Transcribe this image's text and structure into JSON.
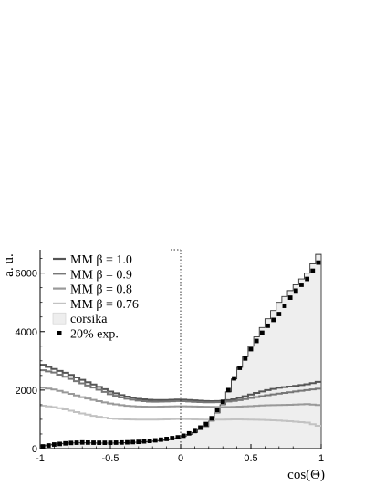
{
  "chart_data": {
    "type": "line",
    "title": "",
    "xlabel": "cos(Θ)",
    "ylabel": "a. u.",
    "xlim": [
      -1,
      1
    ],
    "ylim": [
      0,
      6800
    ],
    "x_ticks": [
      -1,
      -0.5,
      0,
      0.5,
      1
    ],
    "x_tick_labels": [
      "-1",
      "-0.5",
      "0",
      "0.5",
      "1"
    ],
    "y_ticks": [
      0,
      2000,
      4000,
      6000
    ],
    "y_tick_labels": [
      "0",
      "2000",
      "4000",
      "6000"
    ],
    "grid": false,
    "legend_position": "top-left",
    "reference_line": {
      "x": 0,
      "style": "dotted"
    },
    "x": [
      -1.0,
      -0.9,
      -0.8,
      -0.7,
      -0.6,
      -0.5,
      -0.4,
      -0.3,
      -0.2,
      -0.1,
      0.0,
      0.1,
      0.2,
      0.3,
      0.4,
      0.5,
      0.6,
      0.7,
      0.8,
      0.9,
      1.0
    ],
    "series": [
      {
        "name": "MM β = 1.0",
        "color": "#555555",
        "kind": "step",
        "values": [
          2900,
          2720,
          2560,
          2350,
          2150,
          1950,
          1800,
          1700,
          1660,
          1660,
          1680,
          1650,
          1620,
          1630,
          1700,
          1850,
          1980,
          2080,
          2130,
          2200,
          2300
        ]
      },
      {
        "name": "MM β = 0.9",
        "color": "#777777",
        "kind": "step",
        "values": [
          2700,
          2600,
          2420,
          2230,
          2050,
          1860,
          1720,
          1640,
          1600,
          1610,
          1630,
          1600,
          1580,
          1590,
          1640,
          1730,
          1810,
          1880,
          1940,
          2000,
          2060
        ]
      },
      {
        "name": "MM β = 0.8",
        "color": "#999999",
        "kind": "step",
        "values": [
          2100,
          2020,
          1900,
          1760,
          1640,
          1540,
          1470,
          1440,
          1430,
          1440,
          1450,
          1440,
          1430,
          1420,
          1430,
          1450,
          1480,
          1490,
          1500,
          1520,
          1480
        ]
      },
      {
        "name": "MM β = 0.76",
        "color": "#c2c2c2",
        "kind": "step",
        "values": [
          1480,
          1420,
          1320,
          1200,
          1100,
          1030,
          1000,
          990,
          990,
          1000,
          1010,
          1000,
          990,
          990,
          1000,
          990,
          980,
          960,
          930,
          890,
          750
        ]
      },
      {
        "name": "corsika",
        "color": "#eeeeee",
        "kind": "filled-step",
        "values": [
          80,
          150,
          190,
          200,
          190,
          190,
          200,
          220,
          250,
          300,
          380,
          550,
          800,
          1500,
          2600,
          3500,
          4300,
          5000,
          5500,
          6000,
          6800
        ]
      },
      {
        "name": "20% exp.",
        "color": "#000000",
        "kind": "markers",
        "values": [
          60,
          140,
          190,
          210,
          200,
          200,
          210,
          230,
          270,
          330,
          400,
          600,
          900,
          1600,
          2600,
          3400,
          4100,
          4600,
          5300,
          5800,
          6500
        ]
      }
    ]
  },
  "legend": [
    {
      "label": "MM β = 1.0",
      "symbol": "line",
      "color": "#555555"
    },
    {
      "label": "MM β = 0.9",
      "symbol": "line",
      "color": "#777777"
    },
    {
      "label": "MM β = 0.8",
      "symbol": "line",
      "color": "#999999"
    },
    {
      "label": "MM β = 0.76",
      "symbol": "line",
      "color": "#c2c2c2"
    },
    {
      "label": "corsika",
      "symbol": "box",
      "color": "#eeeeee"
    },
    {
      "label": "20% exp.",
      "symbol": "marker",
      "color": "#000000"
    }
  ]
}
